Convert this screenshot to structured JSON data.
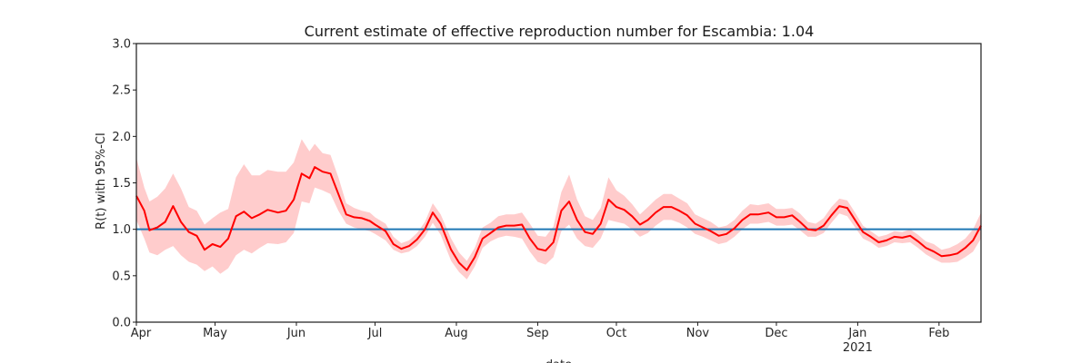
{
  "chart_data": {
    "type": "line",
    "title": "Current estimate of effective reproduction number for Escambia: 1.04",
    "xlabel": "date",
    "ylabel": "R(t) with 95%-CI",
    "xlim": [
      "2020-04-01",
      "2021-02-17"
    ],
    "ylim": [
      0,
      3
    ],
    "grid": false,
    "reference_line": {
      "y": 1.0,
      "color": "#1f77b4"
    },
    "colors": {
      "estimate": "#ff0000",
      "band": "#ffcccc",
      "reference": "#1f77b4",
      "axes": "#1a1a1a"
    },
    "y_ticks": [
      {
        "value": 0.0,
        "label": "0.0"
      },
      {
        "value": 0.5,
        "label": "0.5"
      },
      {
        "value": 1.0,
        "label": "1.0"
      },
      {
        "value": 1.5,
        "label": "1.5"
      },
      {
        "value": 2.0,
        "label": "2.0"
      },
      {
        "value": 2.5,
        "label": "2.5"
      },
      {
        "value": 3.0,
        "label": "3.0"
      }
    ],
    "x_ticks": [
      {
        "date": "2020-04-01",
        "label": "Apr"
      },
      {
        "date": "2020-05-01",
        "label": "May"
      },
      {
        "date": "2020-06-01",
        "label": "Jun"
      },
      {
        "date": "2020-07-01",
        "label": "Jul"
      },
      {
        "date": "2020-08-01",
        "label": "Aug"
      },
      {
        "date": "2020-09-01",
        "label": "Sep"
      },
      {
        "date": "2020-10-01",
        "label": "Oct"
      },
      {
        "date": "2020-11-01",
        "label": "Nov"
      },
      {
        "date": "2020-12-01",
        "label": "Dec"
      },
      {
        "date": "2021-01-01",
        "label": "Jan",
        "sublabel": "2021"
      },
      {
        "date": "2021-02-01",
        "label": "Feb"
      }
    ],
    "series": [
      {
        "x": [
          "2020-04-01",
          "2020-04-04",
          "2020-04-06",
          "2020-04-09",
          "2020-04-12",
          "2020-04-15",
          "2020-04-18",
          "2020-04-21",
          "2020-04-24",
          "2020-04-27",
          "2020-04-30",
          "2020-05-03",
          "2020-05-06",
          "2020-05-09",
          "2020-05-12",
          "2020-05-15",
          "2020-05-18",
          "2020-05-21",
          "2020-05-25",
          "2020-05-28",
          "2020-05-31",
          "2020-06-03",
          "2020-06-06",
          "2020-06-08",
          "2020-06-11",
          "2020-06-14",
          "2020-06-17",
          "2020-06-20",
          "2020-06-23",
          "2020-06-26",
          "2020-06-29",
          "2020-07-01",
          "2020-07-05",
          "2020-07-08",
          "2020-07-11",
          "2020-07-14",
          "2020-07-17",
          "2020-07-20",
          "2020-07-23",
          "2020-07-26",
          "2020-07-30",
          "2020-08-02",
          "2020-08-05",
          "2020-08-08",
          "2020-08-11",
          "2020-08-14",
          "2020-08-17",
          "2020-08-20",
          "2020-08-23",
          "2020-08-26",
          "2020-08-29",
          "2020-09-01",
          "2020-09-04",
          "2020-09-07",
          "2020-09-10",
          "2020-09-13",
          "2020-09-16",
          "2020-09-19",
          "2020-09-22",
          "2020-09-25",
          "2020-09-28",
          "2020-10-01",
          "2020-10-04",
          "2020-10-07",
          "2020-10-10",
          "2020-10-13",
          "2020-10-16",
          "2020-10-19",
          "2020-10-22",
          "2020-10-25",
          "2020-10-28",
          "2020-10-31",
          "2020-11-03",
          "2020-11-06",
          "2020-11-09",
          "2020-11-12",
          "2020-11-15",
          "2020-11-18",
          "2020-11-21",
          "2020-11-24",
          "2020-11-28",
          "2020-12-01",
          "2020-12-04",
          "2020-12-07",
          "2020-12-10",
          "2020-12-13",
          "2020-12-16",
          "2020-12-19",
          "2020-12-22",
          "2020-12-25",
          "2020-12-28",
          "2020-12-31",
          "2021-01-03",
          "2021-01-06",
          "2021-01-09",
          "2021-01-12",
          "2021-01-15",
          "2021-01-18",
          "2021-01-21",
          "2021-01-24",
          "2021-01-27",
          "2021-01-30",
          "2021-02-02",
          "2021-02-05",
          "2021-02-08",
          "2021-02-11",
          "2021-02-14",
          "2021-02-17"
        ],
        "values": [
          1.36,
          1.2,
          0.99,
          1.02,
          1.08,
          1.25,
          1.08,
          0.97,
          0.93,
          0.78,
          0.84,
          0.81,
          0.9,
          1.14,
          1.19,
          1.12,
          1.16,
          1.21,
          1.18,
          1.2,
          1.32,
          1.6,
          1.55,
          1.67,
          1.62,
          1.6,
          1.38,
          1.16,
          1.13,
          1.12,
          1.09,
          1.05,
          0.98,
          0.84,
          0.79,
          0.82,
          0.89,
          1.0,
          1.18,
          1.06,
          0.78,
          0.64,
          0.56,
          0.7,
          0.9,
          0.96,
          1.02,
          1.04,
          1.04,
          1.05,
          0.9,
          0.79,
          0.77,
          0.86,
          1.2,
          1.3,
          1.1,
          0.97,
          0.95,
          1.06,
          1.32,
          1.24,
          1.21,
          1.14,
          1.05,
          1.1,
          1.18,
          1.24,
          1.24,
          1.2,
          1.15,
          1.06,
          1.02,
          0.98,
          0.93,
          0.95,
          1.01,
          1.1,
          1.16,
          1.16,
          1.18,
          1.13,
          1.13,
          1.15,
          1.08,
          1.0,
          0.99,
          1.04,
          1.15,
          1.25,
          1.23,
          1.1,
          0.97,
          0.92,
          0.86,
          0.88,
          0.92,
          0.91,
          0.93,
          0.87,
          0.8,
          0.76,
          0.71,
          0.72,
          0.74,
          0.8,
          0.88,
          1.04
        ],
        "lower": [
          1.1,
          0.9,
          0.75,
          0.72,
          0.78,
          0.82,
          0.72,
          0.65,
          0.62,
          0.55,
          0.6,
          0.52,
          0.58,
          0.72,
          0.78,
          0.74,
          0.8,
          0.85,
          0.84,
          0.86,
          0.96,
          1.3,
          1.28,
          1.45,
          1.42,
          1.38,
          1.2,
          1.06,
          1.02,
          1.0,
          0.98,
          0.95,
          0.88,
          0.78,
          0.74,
          0.76,
          0.82,
          0.92,
          1.07,
          0.94,
          0.66,
          0.54,
          0.46,
          0.6,
          0.8,
          0.87,
          0.91,
          0.93,
          0.92,
          0.9,
          0.76,
          0.65,
          0.62,
          0.7,
          0.98,
          1.05,
          0.9,
          0.82,
          0.8,
          0.9,
          1.1,
          1.08,
          1.06,
          1.0,
          0.92,
          0.96,
          1.04,
          1.1,
          1.1,
          1.07,
          1.02,
          0.95,
          0.92,
          0.88,
          0.84,
          0.86,
          0.92,
          1.0,
          1.06,
          1.06,
          1.08,
          1.04,
          1.04,
          1.05,
          0.99,
          0.92,
          0.92,
          0.96,
          1.07,
          1.17,
          1.14,
          1.02,
          0.9,
          0.86,
          0.8,
          0.82,
          0.86,
          0.85,
          0.86,
          0.8,
          0.73,
          0.68,
          0.64,
          0.64,
          0.65,
          0.7,
          0.76,
          0.9
        ],
        "upper": [
          1.77,
          1.45,
          1.3,
          1.35,
          1.44,
          1.6,
          1.44,
          1.24,
          1.2,
          1.05,
          1.12,
          1.18,
          1.22,
          1.56,
          1.7,
          1.58,
          1.58,
          1.64,
          1.62,
          1.62,
          1.72,
          1.97,
          1.84,
          1.92,
          1.82,
          1.8,
          1.56,
          1.28,
          1.23,
          1.2,
          1.18,
          1.13,
          1.06,
          0.92,
          0.85,
          0.88,
          0.96,
          1.08,
          1.28,
          1.16,
          0.9,
          0.75,
          0.66,
          0.8,
          1.02,
          1.07,
          1.14,
          1.16,
          1.16,
          1.18,
          1.06,
          0.93,
          0.92,
          1.03,
          1.4,
          1.59,
          1.32,
          1.14,
          1.1,
          1.23,
          1.56,
          1.42,
          1.36,
          1.27,
          1.16,
          1.24,
          1.32,
          1.38,
          1.38,
          1.33,
          1.28,
          1.16,
          1.12,
          1.08,
          1.02,
          1.04,
          1.1,
          1.2,
          1.27,
          1.26,
          1.28,
          1.22,
          1.22,
          1.23,
          1.17,
          1.08,
          1.06,
          1.12,
          1.24,
          1.33,
          1.31,
          1.18,
          1.04,
          0.98,
          0.92,
          0.94,
          0.98,
          0.97,
          1.0,
          0.94,
          0.87,
          0.84,
          0.78,
          0.8,
          0.84,
          0.9,
          1.0,
          1.18
        ]
      }
    ]
  }
}
